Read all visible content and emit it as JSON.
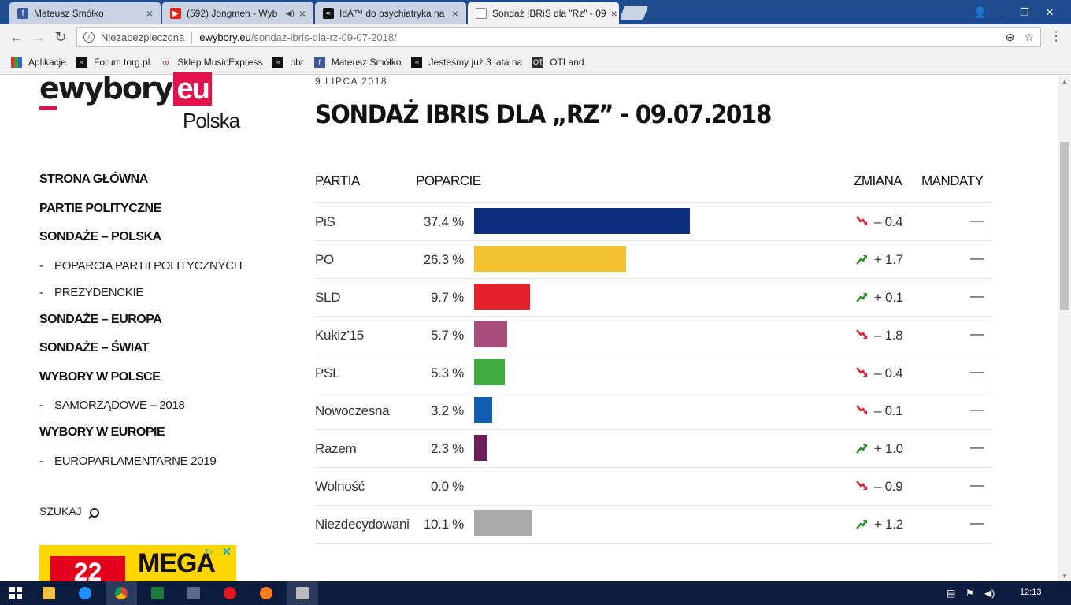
{
  "browser": {
    "tabs": [
      {
        "title": "Mateusz Smółko",
        "favicon": "facebook-icon",
        "color": "#3b5998",
        "active": false
      },
      {
        "title": "(592) Jongmen - Wyb",
        "favicon": "youtube-icon",
        "color": "#e62117",
        "active": false
      },
      {
        "title": "IdÄ™ do psychiatryka na",
        "favicon": "wykop-icon",
        "color": "#111111",
        "active": false
      },
      {
        "title": "Sondaż IBRiS dla \"Rz\" - 09",
        "favicon": "page-icon",
        "color": "#888888",
        "active": true
      }
    ],
    "address": {
      "insecure_label": "Niezabezpieczona",
      "host": "ewybory.eu",
      "path": "/sondaz-ibris-dla-rz-09-07-2018/"
    },
    "bookmarks": [
      {
        "label": "Aplikacje",
        "icon": "apps-grid-icon"
      },
      {
        "label": "Forum torg.pl",
        "icon": "torg-icon"
      },
      {
        "label": "Sklep MusicExpress",
        "icon": "musicexpress-icon"
      },
      {
        "label": "obr",
        "icon": "obr-icon"
      },
      {
        "label": "Mateusz Smółko",
        "icon": "facebook-icon"
      },
      {
        "label": "Jesteśmy już 3 lata na",
        "icon": "wykop-icon"
      },
      {
        "label": "OTLand",
        "icon": "otland-icon"
      }
    ]
  },
  "site": {
    "logo_main": "ewybory",
    "logo_accent": "eu",
    "logo_country": "Polska",
    "accent_color": "#e4124b"
  },
  "nav": {
    "items": [
      {
        "label": "STRONA GŁÓWNA",
        "level": "main"
      },
      {
        "label": "PARTIE POLITYCZNE",
        "level": "main"
      },
      {
        "label": "SONDAŻE – POLSKA",
        "level": "main"
      },
      {
        "label": "POPARCIA PARTII POLITYCZNYCH",
        "level": "sub"
      },
      {
        "label": "PREZYDENCKIE",
        "level": "sub"
      },
      {
        "label": "SONDAŻE – EUROPA",
        "level": "main"
      },
      {
        "label": "SONDAŻE – ŚWIAT",
        "level": "main"
      },
      {
        "label": "WYBORY W POLSCE",
        "level": "main"
      },
      {
        "label": "SAMORZĄDOWE – 2018",
        "level": "sub"
      },
      {
        "label": "WYBORY W EUROPIE",
        "level": "main"
      },
      {
        "label": "EUROPARLAMENTARNE 2019",
        "level": "sub"
      }
    ],
    "sub_marker": "-",
    "search_label": "SZUKAJ"
  },
  "ad": {
    "badge": "22",
    "word": "MEGA"
  },
  "article": {
    "date": "9 LIPCA 2018",
    "title": "SONDAŻ IBRIS DLA „RZ” - 09.07.2018"
  },
  "poll": {
    "headers": {
      "party": "PARTIA",
      "support": "POPARCIE",
      "change": "ZMIANA",
      "seats": "MANDATY"
    },
    "rows": [
      {
        "party": "PiS",
        "support": 37.4,
        "support_label": "37.4 %",
        "color": "#0e2e7f",
        "direction": "down",
        "change": "– 0.4",
        "seats": "—"
      },
      {
        "party": "PO",
        "support": 26.3,
        "support_label": "26.3 %",
        "color": "#f2c230",
        "direction": "up",
        "change": "+ 1.7",
        "seats": "—"
      },
      {
        "party": "SLD",
        "support": 9.7,
        "support_label": "9.7 %",
        "color": "#e3212b",
        "direction": "up",
        "change": "+ 0.1",
        "seats": "—"
      },
      {
        "party": "Kukiz’15",
        "support": 5.7,
        "support_label": "5.7 %",
        "color": "#a84c7b",
        "direction": "down",
        "change": "– 1.8",
        "seats": "—"
      },
      {
        "party": "PSL",
        "support": 5.3,
        "support_label": "5.3 %",
        "color": "#3dab3f",
        "direction": "down",
        "change": "– 0.4",
        "seats": "—"
      },
      {
        "party": "Nowoczesna",
        "support": 3.2,
        "support_label": "3.2 %",
        "color": "#0f5fae",
        "direction": "down",
        "change": "– 0.1",
        "seats": "—"
      },
      {
        "party": "Razem",
        "support": 2.3,
        "support_label": "2.3 %",
        "color": "#6d1f57",
        "direction": "up",
        "change": "+ 1.0",
        "seats": "—"
      },
      {
        "party": "Wolność",
        "support": 0.0,
        "support_label": "0.0 %",
        "color": "#333333",
        "direction": "down",
        "change": "– 0.9",
        "seats": "—"
      },
      {
        "party": "Niezdecydowani",
        "support": 10.1,
        "support_label": "10.1 %",
        "color": "#aaaaaa",
        "direction": "up",
        "change": "+ 1.2",
        "seats": "—"
      }
    ],
    "up_color": "#2b8a2b",
    "down_color": "#d9232d"
  },
  "taskbar": {
    "clock": "12:13"
  }
}
